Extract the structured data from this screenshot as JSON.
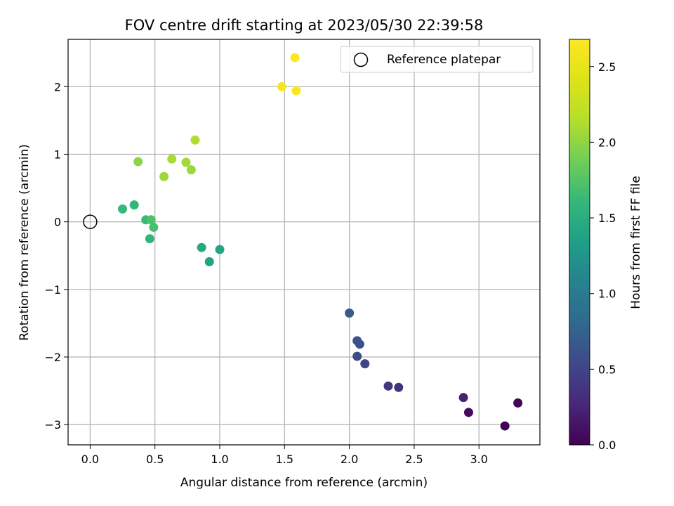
{
  "chart_data": {
    "type": "scatter",
    "title": "FOV centre drift starting at 2023/05/30 22:39:58",
    "xlabel": "Angular distance from reference (arcmin)",
    "ylabel": "Rotation from reference (arcmin)",
    "xlim": [
      -0.17,
      3.47
    ],
    "ylim": [
      -3.3,
      2.7
    ],
    "xticks": [
      0.0,
      0.5,
      1.0,
      1.5,
      2.0,
      2.5,
      3.0
    ],
    "xtick_labels": [
      "0.0",
      "0.5",
      "1.0",
      "1.5",
      "2.0",
      "2.5",
      "3.0"
    ],
    "yticks": [
      -3,
      -2,
      -1,
      0,
      1,
      2
    ],
    "ytick_labels": [
      "−3",
      "−2",
      "−1",
      "0",
      "1",
      "2"
    ],
    "grid": true,
    "colormap": "viridis",
    "colorbar": {
      "label": "Hours from first FF file",
      "range": [
        0.0,
        2.68
      ],
      "ticks": [
        0.0,
        0.5,
        1.0,
        1.5,
        2.0,
        2.5
      ],
      "tick_labels": [
        "0.0",
        "0.5",
        "1.0",
        "1.5",
        "2.0",
        "2.5"
      ]
    },
    "legend": {
      "position": "top-right",
      "entries": [
        "Reference platepar"
      ]
    },
    "reference_point": {
      "x": 0.0,
      "y": 0.0,
      "marker": "open-circle",
      "label": "Reference platepar"
    },
    "points": [
      {
        "x": 3.2,
        "y": -3.02,
        "hours": 0.0
      },
      {
        "x": 2.92,
        "y": -2.82,
        "hours": 0.05
      },
      {
        "x": 3.3,
        "y": -2.68,
        "hours": 0.03
      },
      {
        "x": 2.88,
        "y": -2.6,
        "hours": 0.22
      },
      {
        "x": 2.38,
        "y": -2.45,
        "hours": 0.35
      },
      {
        "x": 2.3,
        "y": -2.43,
        "hours": 0.38
      },
      {
        "x": 2.12,
        "y": -2.1,
        "hours": 0.5
      },
      {
        "x": 2.06,
        "y": -1.99,
        "hours": 0.55
      },
      {
        "x": 2.08,
        "y": -1.81,
        "hours": 0.6
      },
      {
        "x": 2.06,
        "y": -1.76,
        "hours": 0.62
      },
      {
        "x": 2.0,
        "y": -1.35,
        "hours": 0.7
      },
      {
        "x": 0.92,
        "y": -0.59,
        "hours": 1.4
      },
      {
        "x": 0.86,
        "y": -0.38,
        "hours": 1.45
      },
      {
        "x": 1.0,
        "y": -0.41,
        "hours": 1.42
      },
      {
        "x": 0.46,
        "y": -0.25,
        "hours": 1.58
      },
      {
        "x": 0.49,
        "y": -0.08,
        "hours": 1.7
      },
      {
        "x": 0.43,
        "y": 0.03,
        "hours": 1.63
      },
      {
        "x": 0.47,
        "y": 0.03,
        "hours": 1.72
      },
      {
        "x": 0.25,
        "y": 0.19,
        "hours": 1.62
      },
      {
        "x": 0.34,
        "y": 0.25,
        "hours": 1.6
      },
      {
        "x": 0.57,
        "y": 0.67,
        "hours": 2.05
      },
      {
        "x": 0.37,
        "y": 0.89,
        "hours": 1.98
      },
      {
        "x": 0.78,
        "y": 0.77,
        "hours": 2.05
      },
      {
        "x": 0.74,
        "y": 0.88,
        "hours": 2.07
      },
      {
        "x": 0.63,
        "y": 0.93,
        "hours": 2.1
      },
      {
        "x": 0.81,
        "y": 1.21,
        "hours": 2.12
      },
      {
        "x": 1.48,
        "y": 2.0,
        "hours": 2.62
      },
      {
        "x": 1.59,
        "y": 1.94,
        "hours": 2.65
      },
      {
        "x": 1.58,
        "y": 2.43,
        "hours": 2.66
      }
    ]
  }
}
